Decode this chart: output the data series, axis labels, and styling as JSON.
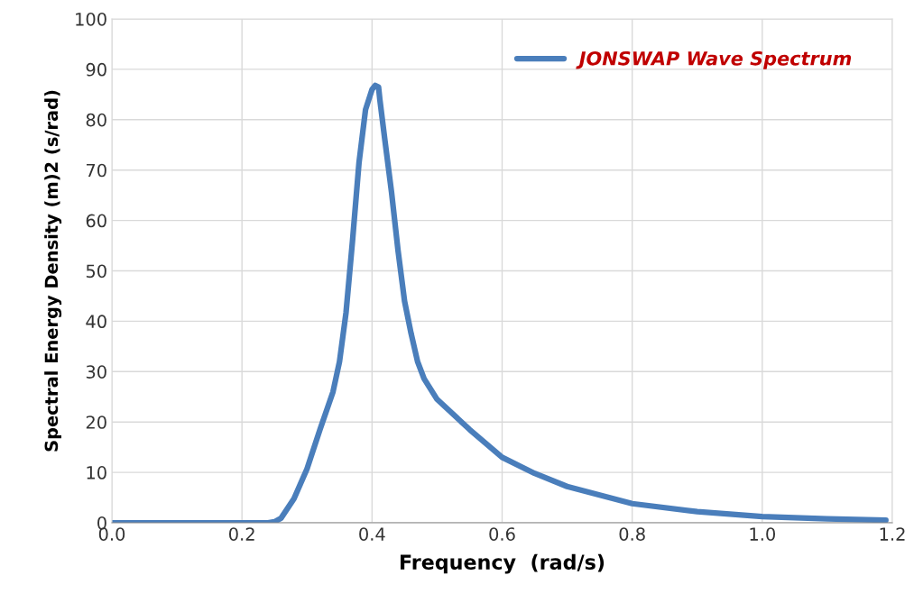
{
  "chart_data": {
    "type": "line",
    "xlabel": "Frequency  (rad/s)",
    "ylabel": "Spectral Energy Density (m)2 (s/rad)",
    "xlim": [
      0,
      1.2
    ],
    "xticks": [
      {
        "value": 0,
        "label": "0.0"
      },
      0.2,
      0.4,
      0.6,
      0.8,
      {
        "value": 1,
        "label": "1.0"
      },
      1.2
    ],
    "ylim": [
      0,
      100
    ],
    "yticks": [
      0,
      10,
      20,
      30,
      40,
      50,
      60,
      70,
      80,
      90,
      100
    ],
    "grid": true,
    "legend": "top right",
    "marker": "none",
    "line_style": "solid",
    "series": [
      {
        "name": "JONSWAP Wave Spectrum",
        "color": "#4a7ebb",
        "x": [
          0,
          0.1,
          0.2,
          0.24,
          0.25,
          0.26,
          0.28,
          0.3,
          0.32,
          0.34,
          0.35,
          0.36,
          0.37,
          0.38,
          0.39,
          0.4,
          0.405,
          0.41,
          0.412,
          0.42,
          0.43,
          0.44,
          0.45,
          0.46,
          0.47,
          0.48,
          0.5,
          0.55,
          0.6,
          0.65,
          0.7,
          0.8,
          0.9,
          1.0,
          1.1,
          1.19
        ],
        "values": [
          0,
          0,
          0,
          0,
          0.2,
          0.9,
          4.8,
          10.7,
          18.5,
          26,
          32,
          41.7,
          56,
          71.5,
          82,
          86,
          86.8,
          86.5,
          84,
          75.7,
          65.6,
          54,
          44,
          37.6,
          32,
          28.6,
          24.5,
          18.5,
          13,
          9.8,
          7.2,
          3.8,
          2.2,
          1.25,
          0.8,
          0.5
        ]
      }
    ]
  }
}
